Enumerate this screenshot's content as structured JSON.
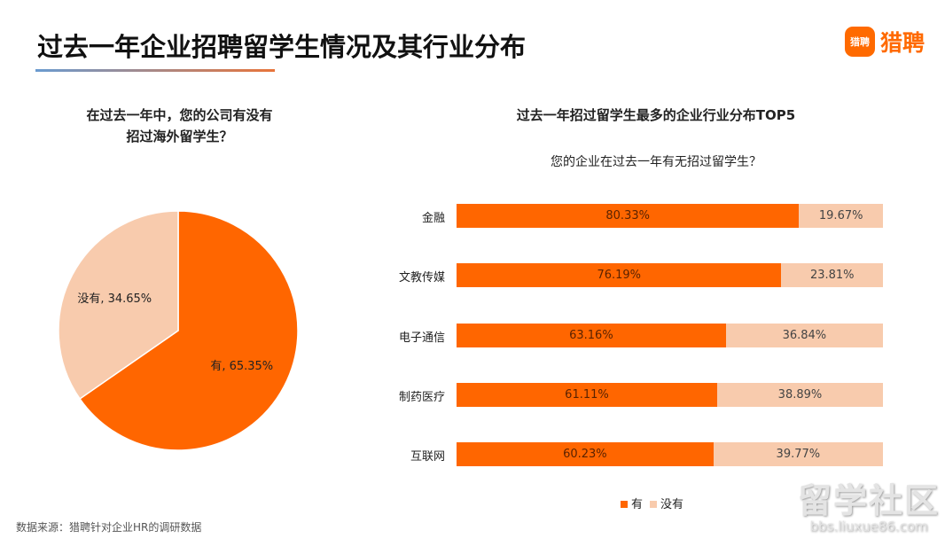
{
  "header": {
    "title": "过去一年企业招聘留学生情况及其行业分布",
    "logo_icon_text": "猎聘",
    "logo_text": "猎聘"
  },
  "chart_data": [
    {
      "type": "pie",
      "title": "在过去一年中，您的公司有没有招过海外留学生？",
      "title_lines": [
        "在过去一年中，您的公司有没有",
        "招过海外留学生？"
      ],
      "slices": [
        {
          "name": "有",
          "value": 65.35,
          "label": "有, 65.35%",
          "color": "#ff6600"
        },
        {
          "name": "没有",
          "value": 34.65,
          "label": "没有, 34.65%",
          "color": "#f8cbad"
        }
      ]
    },
    {
      "type": "bar",
      "stacked": true,
      "orientation": "horizontal",
      "title": "过去一年招过留学生最多的企业行业分布TOP5",
      "subtitle": "您的企业在过去一年有无招过留学生？",
      "categories": [
        "金融",
        "文教传媒",
        "电子通信",
        "制药医疗",
        "互联网"
      ],
      "series": [
        {
          "name": "有",
          "color": "#ff6600",
          "values": [
            80.33,
            76.19,
            63.16,
            61.11,
            60.23
          ],
          "labels": [
            "80.33%",
            "76.19%",
            "63.16%",
            "61.11%",
            "60.23%"
          ]
        },
        {
          "name": "没有",
          "color": "#f8cbad",
          "values": [
            19.67,
            23.81,
            36.84,
            38.89,
            39.77
          ],
          "labels": [
            "19.67%",
            "23.81%",
            "36.84%",
            "38.89%",
            "39.77%"
          ]
        }
      ],
      "xlim": [
        0,
        100
      ],
      "legend": "bottom"
    }
  ],
  "footer": {
    "source": "数据来源：猎聘针对企业HR的调研数据"
  },
  "watermark": {
    "line1": "留学社区",
    "line2": "bbs.liuxue86.com"
  }
}
